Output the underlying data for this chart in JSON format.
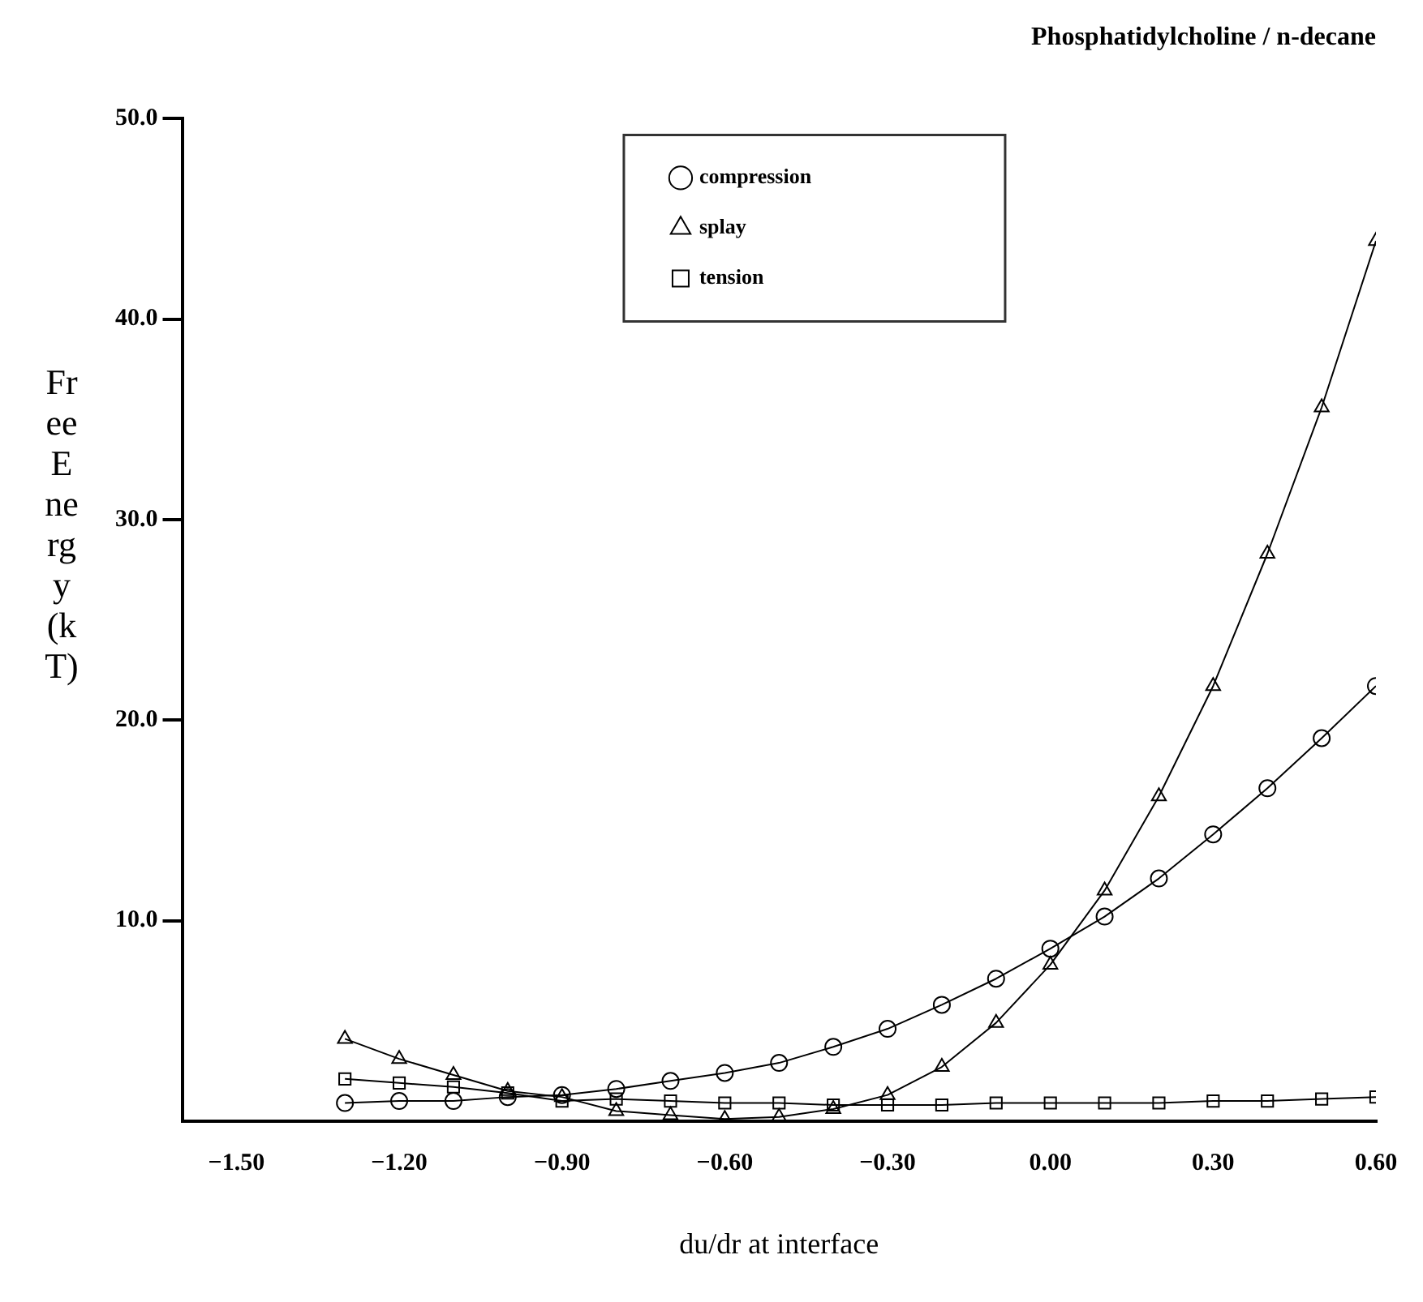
{
  "chart_data": {
    "type": "line",
    "title": "Phosphatidylcholine / n-decane",
    "xlabel": "du/dr at interface",
    "ylabel": "Free Energy (kT)",
    "x": [
      -1.3,
      -1.2,
      -1.1,
      -1.0,
      -0.9,
      -0.8,
      -0.7,
      -0.6,
      -0.5,
      -0.4,
      -0.3,
      -0.2,
      -0.1,
      0.0,
      0.1,
      0.2,
      0.3,
      0.4,
      0.5,
      0.6
    ],
    "series": [
      {
        "name": "compression",
        "color": "#000000",
        "marker": "circle",
        "values": [
          0.9,
          1.0,
          1.0,
          1.2,
          1.3,
          1.6,
          2.0,
          2.4,
          2.9,
          3.7,
          4.6,
          5.8,
          7.1,
          8.6,
          10.2,
          12.1,
          14.3,
          16.6,
          19.1,
          21.7
        ]
      },
      {
        "name": "splay",
        "color": "#000000",
        "marker": "triangle",
        "values": [
          4.1,
          3.1,
          2.3,
          1.5,
          1.2,
          0.5,
          0.3,
          0.1,
          0.2,
          0.6,
          1.3,
          2.7,
          4.9,
          7.8,
          11.5,
          16.2,
          21.7,
          28.3,
          35.6,
          43.9
        ]
      },
      {
        "name": "tension",
        "color": "#000000",
        "marker": "square",
        "values": [
          2.1,
          1.9,
          1.7,
          1.4,
          1.0,
          1.1,
          1.0,
          0.9,
          0.9,
          0.8,
          0.8,
          0.8,
          0.9,
          0.9,
          0.9,
          0.9,
          1.0,
          1.0,
          1.1,
          1.2
        ]
      }
    ],
    "xlim": [
      -1.6,
      0.6
    ],
    "xticks": [
      {
        "value": -1.5,
        "label": "−1.50"
      },
      {
        "value": -1.2,
        "label": "−1.20"
      },
      {
        "value": -0.9,
        "label": "−0.90"
      },
      {
        "value": -0.6,
        "label": "−0.60"
      },
      {
        "value": -0.3,
        "label": "−0.30"
      },
      {
        "value": 0,
        "label": "0.00"
      },
      {
        "value": 0.3,
        "label": "0.30"
      },
      {
        "value": 0.6,
        "label": "0.60"
      }
    ],
    "ylim": [
      0,
      50
    ],
    "yticks": [
      {
        "value": 10,
        "label": "10.0"
      },
      {
        "value": 20,
        "label": "20.0"
      },
      {
        "value": 30,
        "label": "30.0"
      },
      {
        "value": 40,
        "label": "40.0"
      },
      {
        "value": 50,
        "label": "50.0"
      }
    ],
    "grid": false,
    "legend": "top",
    "line_style": "solid"
  }
}
